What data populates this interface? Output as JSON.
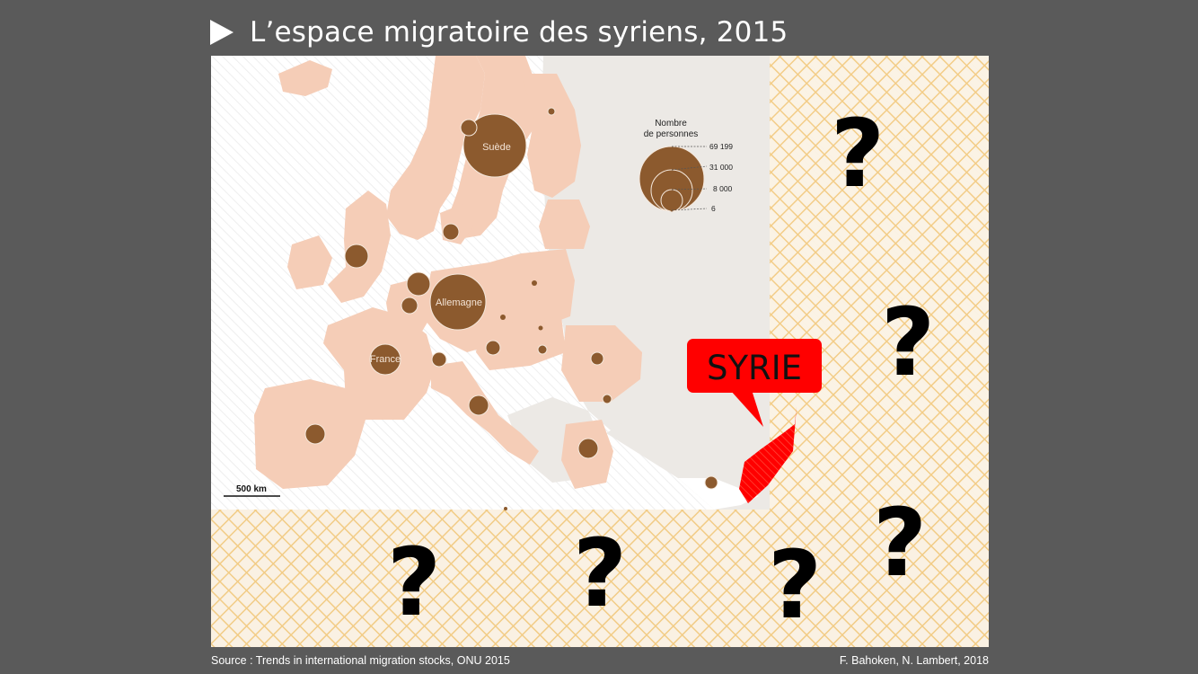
{
  "header": {
    "title": "L’espace migratoire des syriens, 2015"
  },
  "map": {
    "colors": {
      "countries": "#f5cdb7",
      "bubble": "#8c5a2e",
      "syria": "#ff0000",
      "unknown_hatch": "#f0c060",
      "land_grey": "#ece9e5"
    },
    "countries": {
      "suede": {
        "label": "Suède"
      },
      "allemagne": {
        "label": "Allemagne"
      },
      "france": {
        "label": "France"
      }
    },
    "callout": {
      "label": "SYRIE"
    },
    "unknown_marker": "?",
    "scale": {
      "label": "500 km"
    },
    "legend": {
      "title_line1": "Nombre",
      "title_line2": "de personnes",
      "values": [
        "69 199",
        "31 000",
        "8 000",
        "6"
      ]
    }
  },
  "footer": {
    "source": "Source : Trends in international migration stocks, ONU 2015",
    "credits": "F. Bahoken, N. Lambert, 2018"
  }
}
